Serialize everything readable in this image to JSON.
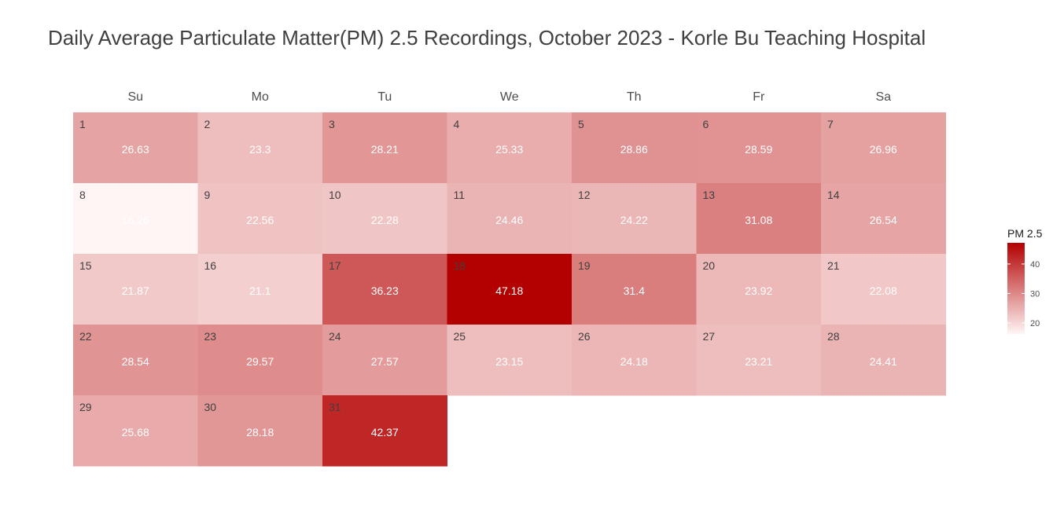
{
  "chart_data": {
    "type": "heatmap",
    "title": "Daily Average Particulate Matter(PM) 2.5 Recordings, October 2023 - Korle Bu Teaching Hospital",
    "weekdays": [
      "Su",
      "Mo",
      "Tu",
      "We",
      "Th",
      "Fr",
      "Sa"
    ],
    "first_weekday_index": 0,
    "days": [
      1,
      2,
      3,
      4,
      5,
      6,
      7,
      8,
      9,
      10,
      11,
      12,
      13,
      14,
      15,
      16,
      17,
      18,
      19,
      20,
      21,
      22,
      23,
      24,
      25,
      26,
      27,
      28,
      29,
      30,
      31
    ],
    "values": [
      "26.63",
      "23.3",
      "28.21",
      "25.33",
      "28.86",
      "28.59",
      "26.96",
      "16.26",
      "22.56",
      "22.28",
      "24.46",
      "24.22",
      "31.08",
      "26.54",
      "21.87",
      "21.1",
      "36.23",
      "47.18",
      "31.4",
      "23.92",
      "22.08",
      "28.54",
      "29.57",
      "27.57",
      "23.15",
      "24.18",
      "23.21",
      "24.41",
      "25.68",
      "28.18",
      "42.37"
    ],
    "legend": {
      "title": "PM 2.5",
      "ticks": [
        20,
        30,
        40
      ],
      "range": [
        16.26,
        47.18
      ],
      "low_color": "#fff5f5",
      "high_color": "#b30000"
    }
  }
}
